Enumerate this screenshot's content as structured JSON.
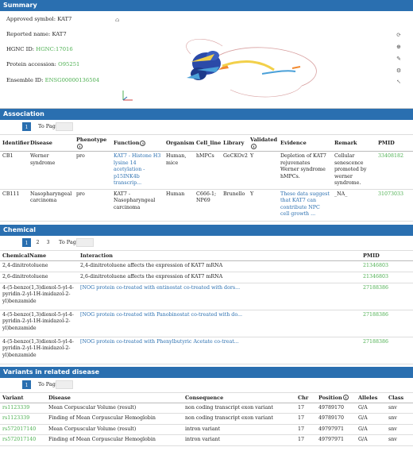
{
  "summary": {
    "header": "Summary",
    "approved_symbol_label": "Approved symbol:",
    "approved_symbol": "KAT7",
    "reported_name_label": "Reported name:",
    "reported_name": "KAT7",
    "hgnc_label": "HGNC ID:",
    "hgnc": "HGNC:17016",
    "protein_label": "Protein accession:",
    "protein": "O95251",
    "ensembl_label": "Ensemble ID:",
    "ensembl": "ENSG00000136504",
    "controls": [
      "refresh-icon",
      "zoom-icon",
      "edit-icon",
      "settings-icon",
      "arrow-icon"
    ]
  },
  "association": {
    "header": "Association",
    "page": "1",
    "to_page": "To Page",
    "columns": [
      "Identifier",
      "Disease",
      "Phenotype",
      "Function",
      "Organism",
      "Cell_line",
      "Library",
      "Validated",
      "Evidence",
      "Remark",
      "PMID"
    ],
    "rows": [
      {
        "id": "CB1",
        "disease": "Werner syndrome",
        "phenotype": "pro",
        "function": "KAT7 - Histone H3 lysine 14 acetylation - p15INK4b transcrip...",
        "organism": "Human, mice",
        "cell_line": "hMPCs",
        "library": "GeCKOv2",
        "validated": "Y",
        "evidence": "Depletion of KAT7 rejuvenates Werner syndrome hMPCs.",
        "remark": "Cellular senescence promoted by werner syndrome.",
        "pmid": "33408182"
      },
      {
        "id": "CB111",
        "disease": "Nasopharyngeal carcinoma",
        "phenotype": "pro",
        "function": "KAT7 - Nasopharyngeal carcinoma",
        "organism": "Human",
        "cell_line": "C666-1; NP69",
        "library": "Brunello",
        "validated": "Y",
        "evidence": "These data suggest that KAT7 can contribute NPC cell growth ...",
        "remark": "_NA_",
        "pmid": "31073033"
      }
    ]
  },
  "chemical": {
    "header": "Chemical",
    "pages": [
      "1",
      "2",
      "3"
    ],
    "to_page": "To Page",
    "columns": [
      "ChemicalName",
      "Interaction",
      "PMID"
    ],
    "rows": [
      {
        "name": "2,4-dinitrotoluene",
        "interaction": "2,4-dinitrotoluene affects the expression of KAT7 mRNA",
        "pmid": "21346803"
      },
      {
        "name": "2,6-dinitrotoluene",
        "interaction": "2,6-dinitrotoluene affects the expression of KAT7 mRNA",
        "pmid": "21346803"
      },
      {
        "name": "4-(5-benzo(1,3)dioxol-5-yl-4-pyridin-2-yl-1H-imidazol-2-yl)benzamide",
        "interaction": "[NOG protein co-treated with entinostat co-treated with dors...",
        "pmid": "27188386"
      },
      {
        "name": "4-(5-benzo(1,3)dioxol-5-yl-4-pyridin-2-yl-1H-imidazol-2-yl)benzamide",
        "interaction": "[NOG protein co-treated with Panobinostat co-treated with do...",
        "pmid": "27188386"
      },
      {
        "name": "4-(5-benzo(1,3)dioxol-5-yl-4-pyridin-2-yl-1H-imidazol-2-yl)benzamide",
        "interaction": "[NOG protein co-treated with Phenylbutyric Acetate co-treat...",
        "pmid": "27188386"
      }
    ]
  },
  "variants": {
    "header": "Variants in related disease",
    "page": "1",
    "to_page": "To Page",
    "columns": [
      "Variant",
      "Disease",
      "Consequence",
      "Chr",
      "Position",
      "Alleles",
      "Class"
    ],
    "rows": [
      {
        "variant": "rs1123339",
        "disease": "Mean Corpuscular Volume (result)",
        "consequence": "non coding transcript exon variant",
        "chr": "17",
        "position": "49789170",
        "alleles": "G/A",
        "class": "snv"
      },
      {
        "variant": "rs1123339",
        "disease": "Finding of Mean Corpuscular Hemoglobin",
        "consequence": "non coding transcript exon variant",
        "chr": "17",
        "position": "49789170",
        "alleles": "G/A",
        "class": "snv"
      },
      {
        "variant": "rs572017140",
        "disease": "Mean Corpuscular Volume (result)",
        "consequence": "intron variant",
        "chr": "17",
        "position": "49797971",
        "alleles": "G/A",
        "class": "snv"
      },
      {
        "variant": "rs572017140",
        "disease": "Finding of Mean Corpuscular Hemoglobin",
        "consequence": "intron variant",
        "chr": "17",
        "position": "49797971",
        "alleles": "G/A",
        "class": "snv"
      }
    ]
  }
}
